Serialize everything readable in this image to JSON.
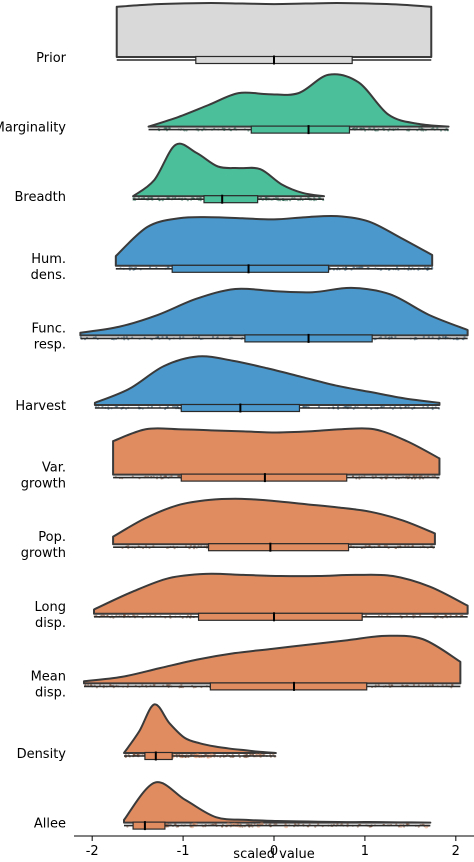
{
  "chart_data": {
    "type": "raincloud",
    "xlabel": "scaled value",
    "xlim": [
      -2.2,
      2.2
    ],
    "xticks": [
      "-2",
      "-1",
      "0",
      "1",
      "2"
    ],
    "xtick_values": [
      -2,
      -1,
      0,
      1,
      2
    ],
    "colors": {
      "Prior": "#d9d9d9",
      "green": "#4bbf9a",
      "blue": "#4a98cc",
      "orange": "#e08b60"
    },
    "series": [
      {
        "name": "Prior",
        "label_lines": [
          "Prior"
        ],
        "color": "#d9d9d9",
        "range": [
          -1.73,
          1.73
        ],
        "density": [
          0.93,
          0.97,
          0.99,
          1.0,
          0.99,
          0.98,
          0.99,
          1.0,
          0.99,
          0.97,
          0.93
        ],
        "box": {
          "q1": -0.86,
          "median": 0.0,
          "q3": 0.86
        },
        "rain": false
      },
      {
        "name": "Marginality",
        "label_lines": [
          "Marginality"
        ],
        "color": "#4bbf9a",
        "range": [
          -1.38,
          1.92
        ],
        "density": [
          0.0,
          0.18,
          0.4,
          0.62,
          0.6,
          0.62,
          0.96,
          0.82,
          0.22,
          0.05,
          0.0
        ],
        "box": {
          "q1": -0.25,
          "median": 0.38,
          "q3": 0.83
        },
        "rain": true
      },
      {
        "name": "Breadth",
        "label_lines": [
          "Breadth"
        ],
        "color": "#4bbf9a",
        "range": [
          -1.55,
          0.55
        ],
        "density": [
          0.0,
          0.3,
          0.95,
          0.8,
          0.55,
          0.52,
          0.5,
          0.22,
          0.06,
          0.0
        ],
        "box": {
          "q1": -0.77,
          "median": -0.57,
          "q3": -0.18
        },
        "rain": true
      },
      {
        "name": "Hum. dens.",
        "label_lines": [
          "Hum.",
          "dens."
        ],
        "color": "#4a98cc",
        "range": [
          -1.74,
          1.74
        ],
        "density": [
          0.18,
          0.72,
          0.88,
          0.9,
          0.88,
          0.86,
          0.9,
          0.92,
          0.82,
          0.52,
          0.2
        ],
        "box": {
          "q1": -1.12,
          "median": -0.28,
          "q3": 0.6
        },
        "rain": true
      },
      {
        "name": "Func. resp.",
        "label_lines": [
          "Func.",
          "resp."
        ],
        "color": "#4a98cc",
        "range": [
          -2.13,
          2.13
        ],
        "density": [
          0.05,
          0.16,
          0.38,
          0.68,
          0.86,
          0.82,
          0.8,
          0.88,
          0.76,
          0.38,
          0.1
        ],
        "box": {
          "q1": -0.32,
          "median": 0.38,
          "q3": 1.08
        },
        "rain": true
      },
      {
        "name": "Harvest",
        "label_lines": [
          "Harvest"
        ],
        "color": "#4a98cc",
        "range": [
          -1.97,
          1.82
        ],
        "density": [
          0.04,
          0.3,
          0.72,
          0.9,
          0.82,
          0.68,
          0.52,
          0.36,
          0.24,
          0.12,
          0.04
        ],
        "box": {
          "q1": -1.02,
          "median": -0.37,
          "q3": 0.28
        },
        "rain": true
      },
      {
        "name": "Var. growth",
        "label_lines": [
          "Var.",
          "growth"
        ],
        "color": "#e08b60",
        "range": [
          -1.77,
          1.82
        ],
        "density": [
          0.62,
          0.84,
          0.84,
          0.82,
          0.8,
          0.78,
          0.8,
          0.84,
          0.84,
          0.62,
          0.3
        ],
        "box": {
          "q1": -1.02,
          "median": -0.1,
          "q3": 0.8
        },
        "rain": true
      },
      {
        "name": "Pop. growth",
        "label_lines": [
          "Pop.",
          "growth"
        ],
        "color": "#e08b60",
        "range": [
          -1.77,
          1.77
        ],
        "density": [
          0.14,
          0.48,
          0.72,
          0.82,
          0.84,
          0.8,
          0.74,
          0.68,
          0.6,
          0.44,
          0.2
        ],
        "box": {
          "q1": -0.72,
          "median": -0.04,
          "q3": 0.82
        },
        "rain": true
      },
      {
        "name": "Long disp.",
        "label_lines": [
          "Long",
          "disp."
        ],
        "color": "#e08b60",
        "range": [
          -1.98,
          2.13
        ],
        "density": [
          0.08,
          0.4,
          0.66,
          0.74,
          0.72,
          0.7,
          0.7,
          0.72,
          0.7,
          0.5,
          0.15
        ],
        "box": {
          "q1": -0.83,
          "median": 0.0,
          "q3": 0.97
        },
        "rain": true
      },
      {
        "name": "Mean disp.",
        "label_lines": [
          "Mean",
          "disp."
        ],
        "color": "#e08b60",
        "range": [
          -2.09,
          2.05
        ],
        "density": [
          0.04,
          0.12,
          0.28,
          0.44,
          0.56,
          0.64,
          0.72,
          0.8,
          0.88,
          0.82,
          0.4
        ],
        "box": {
          "q1": -0.7,
          "median": 0.22,
          "q3": 1.02
        },
        "rain": true
      },
      {
        "name": "Density",
        "label_lines": [
          "Density"
        ],
        "color": "#e08b60",
        "range": [
          -1.65,
          0.02
        ],
        "density": [
          0.0,
          0.4,
          0.9,
          0.55,
          0.28,
          0.18,
          0.12,
          0.08,
          0.05,
          0.02,
          0.0
        ],
        "box": {
          "q1": -1.42,
          "median": -1.3,
          "q3": -1.12
        },
        "rain": true
      },
      {
        "name": "Allee",
        "label_lines": [
          "Allee"
        ],
        "color": "#e08b60",
        "range": [
          -1.65,
          1.72
        ],
        "density": [
          0.05,
          0.74,
          0.42,
          0.1,
          0.05,
          0.03,
          0.02,
          0.01,
          0.01,
          0.005,
          0.0
        ],
        "box": {
          "q1": -1.55,
          "median": -1.42,
          "q3": -1.2
        },
        "rain": true
      }
    ]
  }
}
